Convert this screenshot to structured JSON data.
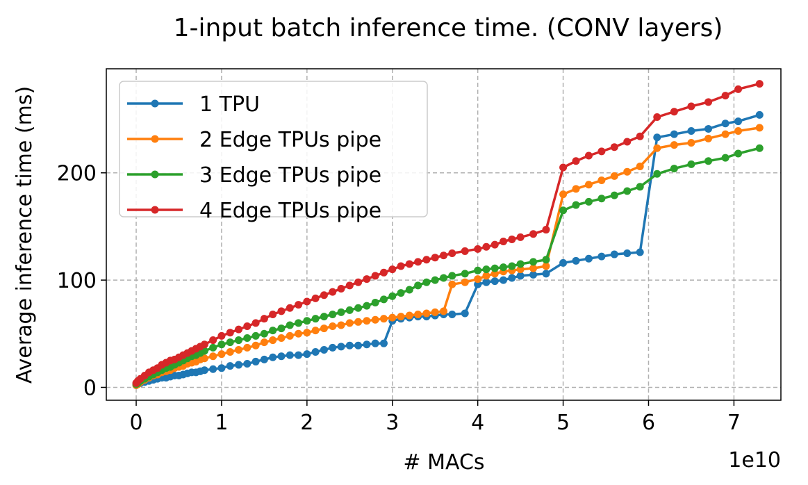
{
  "chart_data": {
    "type": "line",
    "title": "1-input batch inference time. (CONV layers)",
    "xlabel": "# MACs",
    "ylabel": "Average inference time (ms)",
    "x_offset_text": "1e10",
    "xlim": [
      -0.35,
      7.55
    ],
    "ylim": [
      -12,
      297
    ],
    "x_ticks": [
      0,
      1,
      2,
      3,
      4,
      5,
      6,
      7
    ],
    "x_tick_labels": [
      "0",
      "1",
      "2",
      "3",
      "4",
      "5",
      "6",
      "7"
    ],
    "y_ticks": [
      0,
      100,
      200
    ],
    "y_tick_labels": [
      "0",
      "100",
      "200"
    ],
    "grid": true,
    "legend_position": "upper-left",
    "series": [
      {
        "name": "1 TPU",
        "color": "#1f77b4",
        "x": [
          0,
          0.02,
          0.05,
          0.1,
          0.15,
          0.2,
          0.25,
          0.3,
          0.35,
          0.4,
          0.45,
          0.5,
          0.55,
          0.6,
          0.65,
          0.7,
          0.75,
          0.8,
          0.9,
          1.0,
          1.1,
          1.2,
          1.3,
          1.4,
          1.5,
          1.6,
          1.7,
          1.8,
          1.9,
          2.0,
          2.1,
          2.2,
          2.3,
          2.4,
          2.5,
          2.6,
          2.7,
          2.8,
          2.9,
          3.0,
          3.1,
          3.2,
          3.3,
          3.4,
          3.5,
          3.6,
          3.7,
          3.85,
          4.0,
          4.1,
          4.2,
          4.3,
          4.4,
          4.5,
          4.65,
          4.8,
          5.0,
          5.15,
          5.3,
          5.45,
          5.6,
          5.75,
          5.9,
          6.1,
          6.3,
          6.5,
          6.7,
          6.9,
          7.05,
          7.3
        ],
        "y": [
          2,
          3,
          4,
          5,
          6,
          7,
          8,
          9,
          9,
          10,
          11,
          11,
          12,
          13,
          14,
          14,
          15,
          16,
          17,
          18,
          20,
          21,
          22,
          24,
          26,
          28,
          29,
          30,
          30,
          31,
          33,
          35,
          37,
          38,
          39,
          39,
          40,
          41,
          41,
          62,
          64,
          65,
          66,
          66,
          67,
          68,
          68,
          69,
          96,
          98,
          99,
          100,
          102,
          104,
          105,
          106,
          116,
          118,
          120,
          122,
          124,
          125,
          126,
          233,
          236,
          239,
          241,
          246,
          248,
          254
        ]
      },
      {
        "name": "2 Edge TPUs pipe",
        "color": "#ff7f0e",
        "x": [
          0,
          0.02,
          0.05,
          0.1,
          0.15,
          0.2,
          0.25,
          0.3,
          0.35,
          0.4,
          0.45,
          0.5,
          0.55,
          0.6,
          0.65,
          0.7,
          0.75,
          0.8,
          0.9,
          1.0,
          1.1,
          1.2,
          1.3,
          1.4,
          1.5,
          1.6,
          1.7,
          1.8,
          1.9,
          2.0,
          2.1,
          2.2,
          2.3,
          2.4,
          2.5,
          2.6,
          2.7,
          2.8,
          2.9,
          3.0,
          3.1,
          3.2,
          3.3,
          3.4,
          3.5,
          3.6,
          3.7,
          3.85,
          4.0,
          4.1,
          4.2,
          4.3,
          4.4,
          4.5,
          4.65,
          4.8,
          5.0,
          5.15,
          5.3,
          5.45,
          5.6,
          5.75,
          5.9,
          6.1,
          6.3,
          6.5,
          6.7,
          6.9,
          7.05,
          7.3
        ],
        "y": [
          2,
          3,
          5,
          7,
          9,
          11,
          12,
          14,
          15,
          16,
          18,
          19,
          20,
          22,
          23,
          24,
          26,
          27,
          29,
          31,
          33,
          35,
          37,
          39,
          42,
          44,
          46,
          48,
          50,
          51,
          53,
          55,
          57,
          58,
          60,
          61,
          62,
          63,
          64,
          65,
          66,
          67,
          68,
          69,
          70,
          71,
          96,
          98,
          101,
          104,
          106,
          108,
          109,
          110,
          111,
          113,
          180,
          185,
          189,
          193,
          197,
          201,
          206,
          223,
          226,
          228,
          232,
          236,
          239,
          242
        ]
      },
      {
        "name": "3 Edge TPUs pipe",
        "color": "#2ca02c",
        "x": [
          0,
          0.02,
          0.05,
          0.1,
          0.15,
          0.2,
          0.25,
          0.3,
          0.35,
          0.4,
          0.45,
          0.5,
          0.55,
          0.6,
          0.65,
          0.7,
          0.75,
          0.8,
          0.9,
          1.0,
          1.1,
          1.2,
          1.3,
          1.4,
          1.5,
          1.6,
          1.7,
          1.8,
          1.9,
          2.0,
          2.1,
          2.2,
          2.3,
          2.4,
          2.5,
          2.6,
          2.7,
          2.8,
          2.9,
          3.0,
          3.1,
          3.2,
          3.3,
          3.4,
          3.5,
          3.6,
          3.7,
          3.85,
          4.0,
          4.1,
          4.2,
          4.3,
          4.4,
          4.5,
          4.65,
          4.8,
          5.0,
          5.15,
          5.3,
          5.45,
          5.6,
          5.75,
          5.9,
          6.1,
          6.3,
          6.5,
          6.7,
          6.9,
          7.05,
          7.3
        ],
        "y": [
          3,
          4,
          6,
          8,
          10,
          12,
          14,
          16,
          18,
          19,
          21,
          23,
          25,
          27,
          29,
          30,
          32,
          34,
          37,
          40,
          42,
          44,
          46,
          48,
          50,
          53,
          55,
          58,
          60,
          62,
          64,
          66,
          68,
          70,
          72,
          74,
          76,
          79,
          82,
          85,
          88,
          91,
          95,
          98,
          100,
          102,
          104,
          106,
          109,
          110,
          111,
          112,
          113,
          115,
          117,
          119,
          165,
          170,
          173,
          176,
          179,
          183,
          187,
          199,
          204,
          208,
          211,
          214,
          218,
          223
        ]
      },
      {
        "name": "4 Edge TPUs pipe",
        "color": "#d62728",
        "x": [
          0,
          0.02,
          0.05,
          0.1,
          0.15,
          0.2,
          0.25,
          0.3,
          0.35,
          0.4,
          0.45,
          0.5,
          0.55,
          0.6,
          0.65,
          0.7,
          0.75,
          0.8,
          0.9,
          1.0,
          1.1,
          1.2,
          1.3,
          1.4,
          1.5,
          1.6,
          1.7,
          1.8,
          1.9,
          2.0,
          2.1,
          2.2,
          2.3,
          2.4,
          2.5,
          2.6,
          2.7,
          2.8,
          2.9,
          3.0,
          3.1,
          3.2,
          3.3,
          3.4,
          3.5,
          3.6,
          3.7,
          3.85,
          4.0,
          4.1,
          4.2,
          4.3,
          4.4,
          4.5,
          4.65,
          4.8,
          5.0,
          5.15,
          5.3,
          5.45,
          5.6,
          5.75,
          5.9,
          6.1,
          6.3,
          6.5,
          6.7,
          6.9,
          7.05,
          7.3
        ],
        "y": [
          4,
          6,
          8,
          11,
          14,
          16,
          18,
          21,
          23,
          25,
          26,
          28,
          30,
          32,
          34,
          36,
          38,
          40,
          44,
          48,
          51,
          54,
          57,
          60,
          64,
          68,
          71,
          74,
          77,
          80,
          83,
          86,
          89,
          92,
          95,
          98,
          101,
          104,
          107,
          110,
          113,
          115,
          117,
          119,
          121,
          123,
          125,
          127,
          129,
          131,
          133,
          136,
          138,
          140,
          143,
          147,
          205,
          211,
          216,
          220,
          224,
          229,
          234,
          252,
          257,
          262,
          266,
          272,
          278,
          283
        ]
      }
    ]
  }
}
